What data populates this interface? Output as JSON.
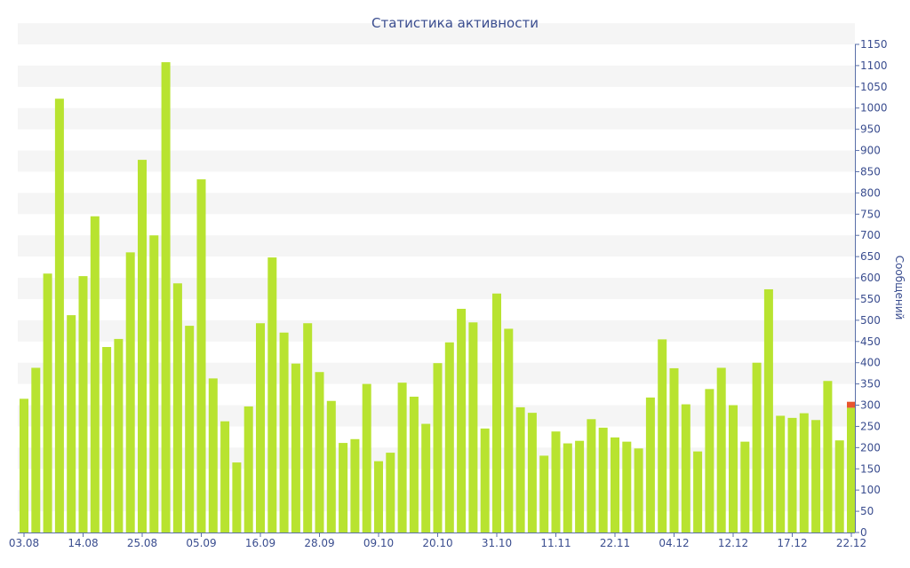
{
  "chart_data": {
    "type": "bar",
    "title": "Статистика активности",
    "ylabel": "Сообщений",
    "xlabel": "",
    "ylim": [
      0,
      1150
    ],
    "ytick_step": 50,
    "grid": "horizontal bands",
    "y_axis_side": "right",
    "x_tick_labels": [
      "03.08",
      "14.08",
      "25.08",
      "05.09",
      "16.09",
      "28.09",
      "09.10",
      "20.10",
      "31.10",
      "11.11",
      "22.11",
      "04.12",
      "12.12",
      "17.12",
      "22.12"
    ],
    "x_tick_positions": [
      0,
      5,
      10,
      15,
      20,
      25,
      30,
      35,
      40,
      45,
      50,
      55,
      60,
      65,
      70
    ],
    "values": [
      315,
      388,
      610,
      1022,
      512,
      604,
      745,
      437,
      456,
      660,
      878,
      700,
      1108,
      587,
      487,
      832,
      363,
      262,
      165,
      297,
      493,
      648,
      471,
      398,
      493,
      378,
      310,
      211,
      220,
      350,
      168,
      188,
      353,
      320,
      256,
      399,
      448,
      527,
      495,
      245,
      563,
      480,
      295,
      282,
      181,
      238,
      210,
      216,
      267,
      247,
      224,
      214,
      198,
      318,
      455,
      387,
      302,
      191,
      338,
      388,
      300,
      214,
      400,
      573,
      275,
      270,
      281,
      265,
      357,
      217,
      294
    ],
    "highlight": {
      "index": 70,
      "extra": 14
    },
    "colors": {
      "bar": "#b8e330",
      "highlight": "#e8562f",
      "text": "#3a4d8f",
      "axis": "#5a6fa8",
      "band": "#f5f5f5"
    }
  }
}
